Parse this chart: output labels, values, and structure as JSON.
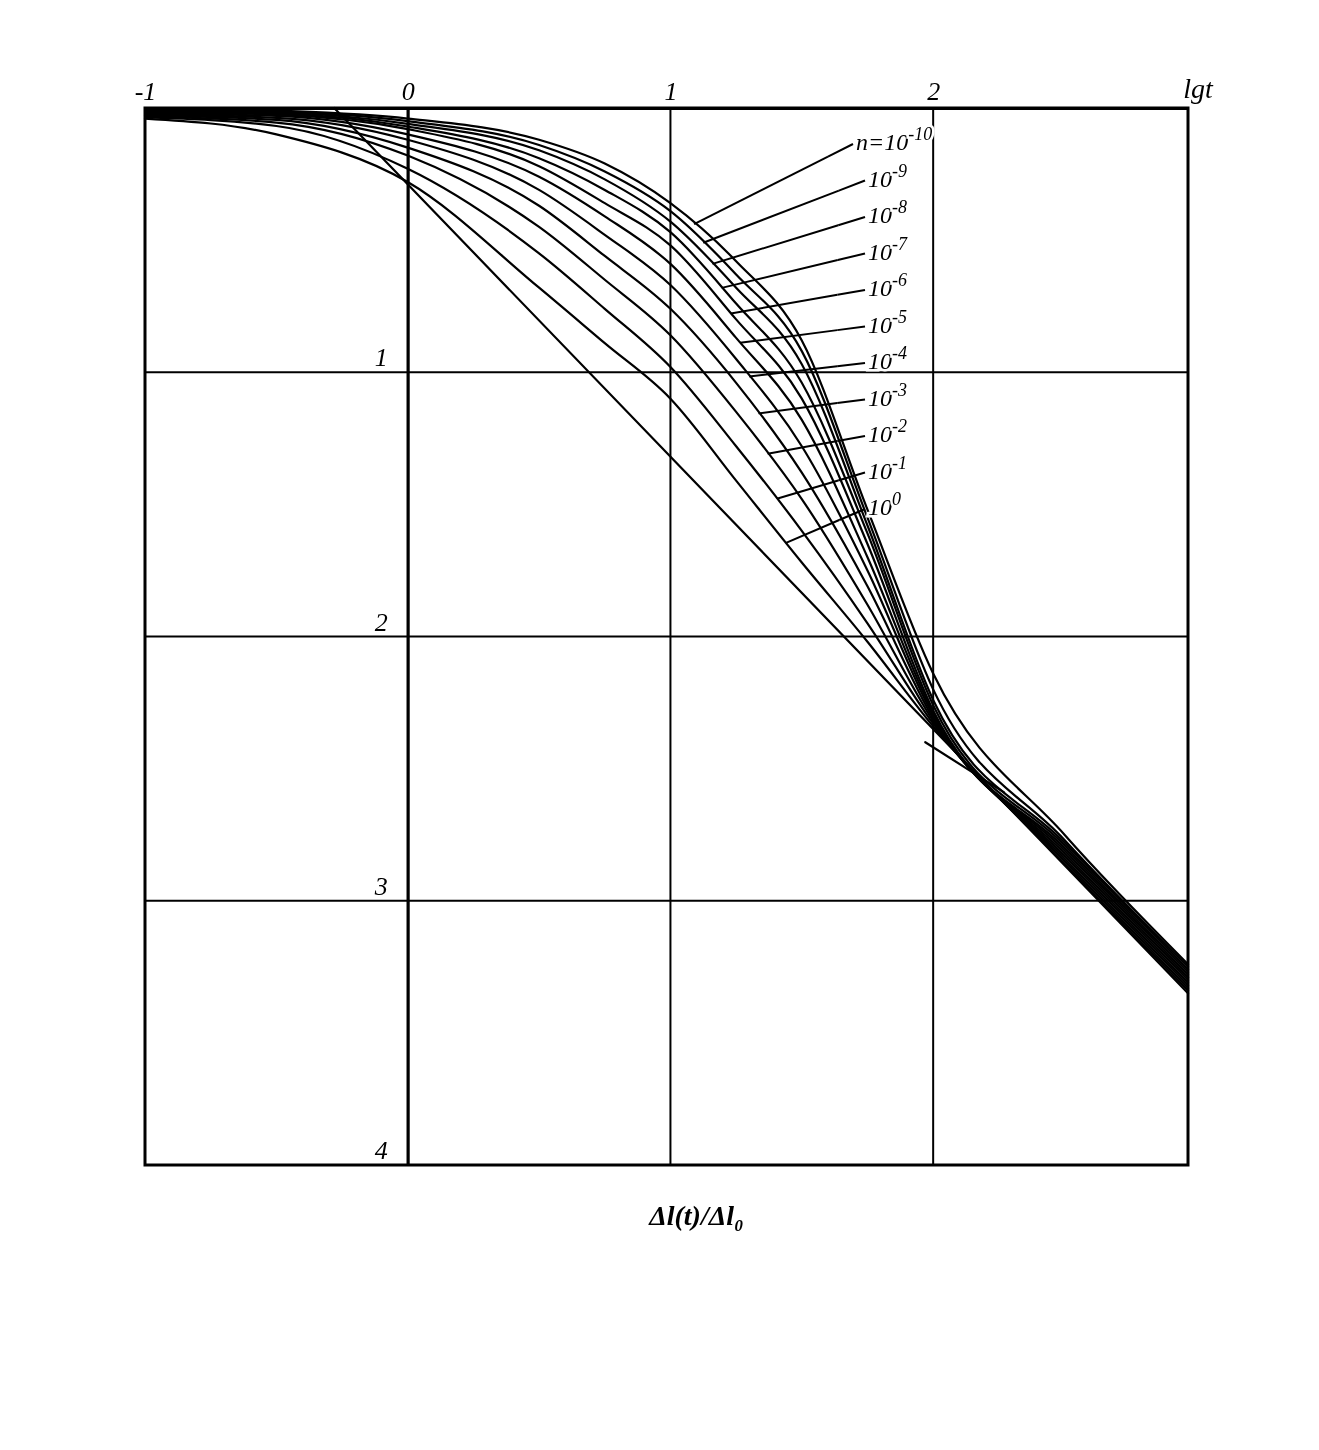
{
  "chart_data": {
    "type": "line",
    "xlabel": "lgt",
    "annotations": [
      "Δl(t)/Δl₀"
    ],
    "x": [
      -1,
      -0.5,
      0,
      0.5,
      0.75,
      1,
      1.25,
      1.5,
      1.75,
      2,
      2.5,
      2.97
    ],
    "series": [
      {
        "name": "n=10$^{-10}$",
        "color": "#000000",
        "values": [
          0.0,
          0.01,
          0.04,
          0.12,
          0.21,
          0.36,
          0.58,
          0.88,
          1.52,
          2.14,
          2.75,
          3.24
        ]
      },
      {
        "name": "10$^{-9}$",
        "color": "#000000",
        "values": [
          0.004,
          0.013,
          0.05,
          0.14,
          0.24,
          0.39,
          0.63,
          0.92,
          1.55,
          2.2,
          2.77,
          3.25
        ]
      },
      {
        "name": "10$^{-8}$",
        "color": "#000000",
        "values": [
          0.008,
          0.016,
          0.06,
          0.16,
          0.27,
          0.43,
          0.68,
          0.97,
          1.58,
          2.24,
          2.78,
          3.26
        ]
      },
      {
        "name": "10$^{-7}$",
        "color": "#000000",
        "values": [
          0.012,
          0.02,
          0.07,
          0.19,
          0.31,
          0.47,
          0.74,
          1.04,
          1.61,
          2.26,
          2.79,
          3.27
        ]
      },
      {
        "name": "10$^{-6}$",
        "color": "#000000",
        "values": [
          0.016,
          0.025,
          0.08,
          0.22,
          0.36,
          0.52,
          0.8,
          1.1,
          1.65,
          2.28,
          2.8,
          3.28
        ]
      },
      {
        "name": "10$^{-5}$",
        "color": "#000000",
        "values": [
          0.02,
          0.03,
          0.1,
          0.26,
          0.41,
          0.59,
          0.87,
          1.18,
          1.7,
          2.29,
          2.81,
          3.29
        ]
      },
      {
        "name": "10$^{-4}$",
        "color": "#000000",
        "values": [
          0.024,
          0.037,
          0.12,
          0.31,
          0.48,
          0.67,
          0.95,
          1.28,
          1.75,
          2.3,
          2.82,
          3.3
        ]
      },
      {
        "name": "10$^{-3}$",
        "color": "#000000",
        "values": [
          0.028,
          0.045,
          0.15,
          0.37,
          0.56,
          0.76,
          1.04,
          1.38,
          1.81,
          2.31,
          2.83,
          3.31
        ]
      },
      {
        "name": "10$^{-2}$",
        "color": "#000000",
        "values": [
          0.032,
          0.055,
          0.18,
          0.45,
          0.65,
          0.86,
          1.15,
          1.48,
          1.88,
          2.32,
          2.84,
          3.32
        ]
      },
      {
        "name": "10$^{-1}$",
        "color": "#000000",
        "values": [
          0.036,
          0.068,
          0.23,
          0.55,
          0.76,
          0.98,
          1.28,
          1.6,
          1.95,
          2.33,
          2.85,
          3.33
        ]
      },
      {
        "name": "10$^{0}$",
        "color": "#000000",
        "values": [
          0.04,
          0.1,
          0.28,
          0.68,
          0.89,
          1.1,
          1.41,
          1.72,
          2.02,
          2.34,
          2.86,
          3.34
        ]
      },
      {
        "color": "#000000",
        "x": [
          -0.28,
          2.97
        ],
        "values": [
          0,
          3.35
        ]
      },
      {
        "color": "#000000",
        "x": [
          1.97,
          2.27
        ],
        "values": [
          2.4,
          2.59
        ]
      }
    ],
    "xlim": [
      -1,
      2.97
    ],
    "ylim": [
      4,
      0
    ],
    "xticks": [
      -1,
      0,
      1,
      2
    ],
    "yticks": [
      1,
      2,
      3,
      4
    ],
    "grid": true,
    "legend": "top right"
  }
}
